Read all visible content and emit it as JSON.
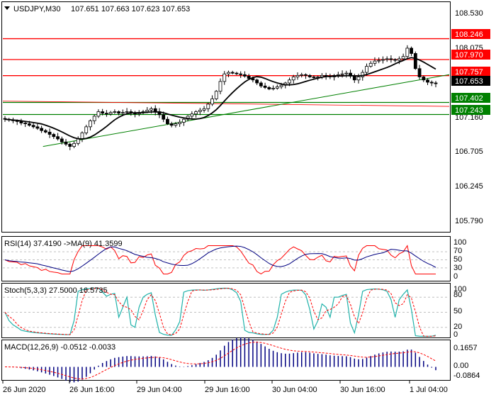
{
  "header": {
    "symbol": "USDJPY,M30",
    "ohlc": "107.651 107.663 107.623 107.653"
  },
  "colors": {
    "bull": "#000000",
    "bear": "#000000",
    "resistance": "#ff0000",
    "support": "#008000",
    "ma": "#000000",
    "trend": "#008000",
    "rsi_line": "#ff0000",
    "rsi_ma": "#000080",
    "stoch_main": "#20b2aa",
    "stoch_signal": "#ff0000",
    "macd_hist": "#000080",
    "macd_signal": "#ff0000",
    "label_bg_red": "#ff0000",
    "label_bg_green": "#008000"
  },
  "chart_data": [
    {
      "type": "candlestick",
      "title": "USDJPY,M30",
      "y_ticks": [
        "108.530",
        "108.075",
        "107.160",
        "106.705",
        "106.245",
        "105.790"
      ],
      "ylim": [
        105.7,
        108.72
      ],
      "x_ticks": [
        "26 Jun 2020",
        "26 Jun 16:00",
        "29 Jun 04:00",
        "29 Jun 16:00",
        "30 Jun 04:00",
        "30 Jun 16:00",
        "1 Jul 04:00"
      ],
      "current_price": "107.653",
      "levels": [
        {
          "label": "108.246",
          "value": 108.246,
          "kind": "resistance"
        },
        {
          "label": "107.970",
          "value": 107.97,
          "kind": "resistance"
        },
        {
          "label": "107.757",
          "value": 107.757,
          "kind": "resistance"
        },
        {
          "label": "107.402",
          "value": 107.402,
          "kind": "support"
        },
        {
          "label": "107.243",
          "value": 107.243,
          "kind": "support"
        }
      ],
      "close_series": [
        107.18,
        107.17,
        107.16,
        107.15,
        107.13,
        107.12,
        107.1,
        107.08,
        107.06,
        107.03,
        107.01,
        106.98,
        106.95,
        106.92,
        106.88,
        106.85,
        106.82,
        106.86,
        106.92,
        107.0,
        107.08,
        107.16,
        107.22,
        107.28,
        107.26,
        107.25,
        107.27,
        107.28,
        107.26,
        107.27,
        107.28,
        107.26,
        107.25,
        107.27,
        107.28,
        107.3,
        107.32,
        107.28,
        107.24,
        107.18,
        107.12,
        107.1,
        107.12,
        107.14,
        107.18,
        107.22,
        107.25,
        107.28,
        107.3,
        107.32,
        107.38,
        107.45,
        107.55,
        107.68,
        107.78,
        107.8,
        107.79,
        107.78,
        107.77,
        107.75,
        107.72,
        107.7,
        107.66,
        107.62,
        107.6,
        107.58,
        107.59,
        107.61,
        107.63,
        107.66,
        107.7,
        107.74,
        107.76,
        107.77,
        107.76,
        107.74,
        107.73,
        107.74,
        107.76,
        107.75,
        107.74,
        107.76,
        107.77,
        107.78,
        107.79,
        107.75,
        107.7,
        107.74,
        107.8,
        107.88,
        107.92,
        107.95,
        107.96,
        107.97,
        107.98,
        107.97,
        107.96,
        107.98,
        108.01,
        108.12,
        108.05,
        107.85,
        107.74,
        107.7,
        107.67,
        107.66,
        107.65
      ],
      "trendline": {
        "from": [
          0.09,
          106.82
        ],
        "to": [
          1.0,
          107.77
        ]
      }
    },
    {
      "type": "line",
      "title": "RSI(14) 37.4190 ->MA(9) 41.3599",
      "y_ticks": [
        "100",
        "70",
        "50",
        "30",
        "0"
      ],
      "ylim": [
        0,
        100
      ]
    },
    {
      "type": "line",
      "title": "Stoch(5,3,3) 27.5000 16.5735",
      "y_ticks": [
        "100",
        "80",
        "50",
        "20",
        "0"
      ],
      "ylim": [
        0,
        100
      ]
    },
    {
      "type": "bar",
      "title": "MACD(12,26,9) -0.0512 -0.0033",
      "y_ticks": [
        "0.1657",
        "0.00",
        "-0.0864"
      ],
      "ylim": [
        -0.0864,
        0.1657
      ]
    }
  ]
}
